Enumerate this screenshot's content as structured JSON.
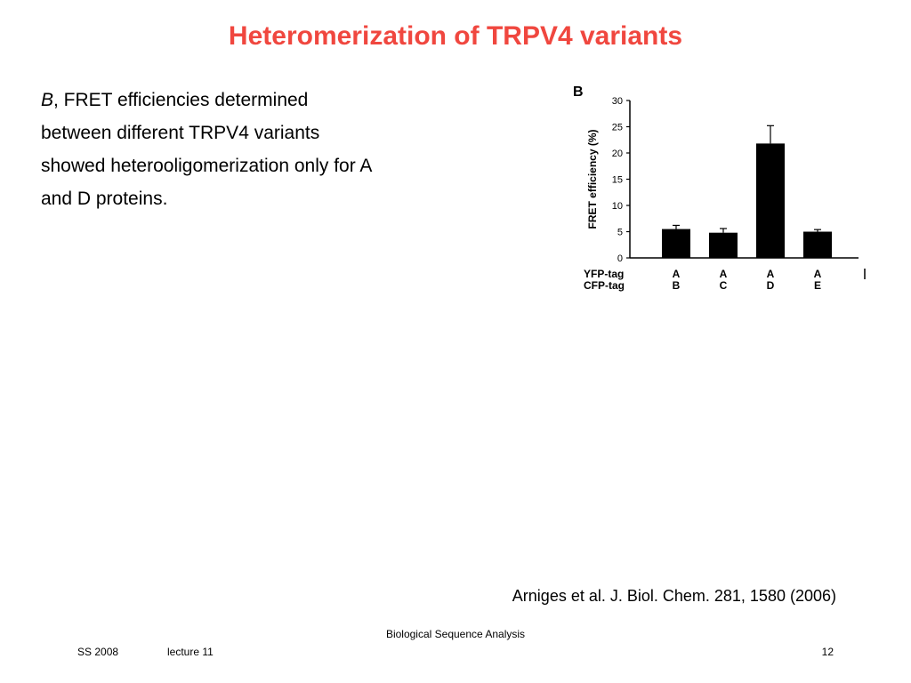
{
  "slide": {
    "title": "Heteromerization of TRPV4 variants",
    "body": {
      "fig_letter": "B",
      "text": ", FRET efficiencies determined between different TRPV4 variants showed heterooligomerization only for A and D proteins."
    },
    "citation": "Arniges et al. J. Biol. Chem. 281, 1580 (2006)",
    "footer": {
      "center": "Biological Sequence Analysis",
      "left": "SS 2008",
      "middle": "lecture 11",
      "page": "12"
    },
    "title_color": "#f0473f"
  },
  "chart_data": {
    "type": "bar",
    "panel_label": "B",
    "ylabel": "FRET efficiency (%)",
    "ylim": [
      0,
      30
    ],
    "yticks": [
      0,
      5,
      10,
      15,
      20,
      25,
      30
    ],
    "row_labels": [
      "YFP-tag",
      "CFP-tag"
    ],
    "categories": [
      {
        "yfp": "A",
        "cfp": "B"
      },
      {
        "yfp": "A",
        "cfp": "C"
      },
      {
        "yfp": "A",
        "cfp": "D"
      },
      {
        "yfp": "A",
        "cfp": "E"
      }
    ],
    "values": [
      5.5,
      4.8,
      21.8,
      5.0
    ],
    "errors": [
      0.7,
      0.8,
      3.4,
      0.4
    ],
    "bar_color": "#000000"
  }
}
